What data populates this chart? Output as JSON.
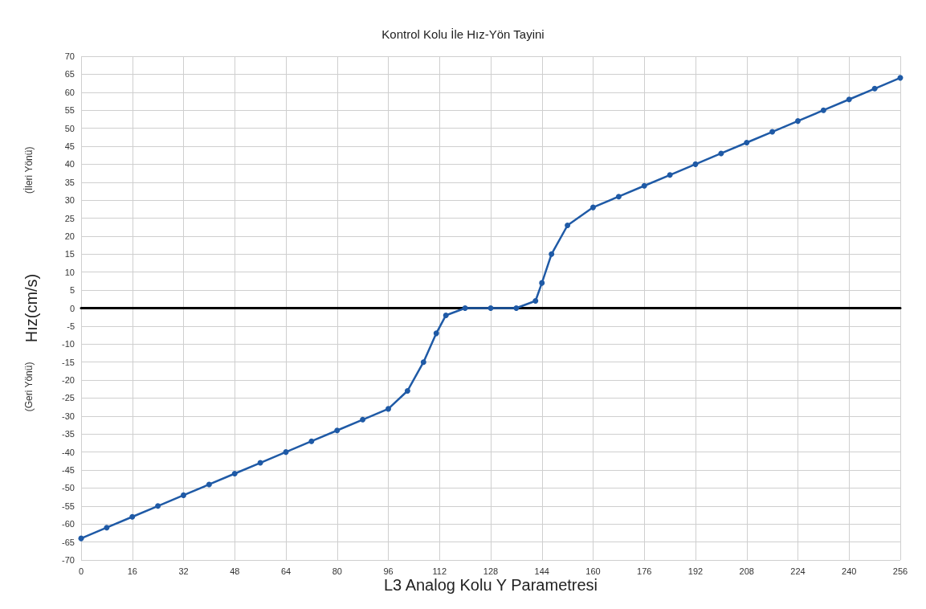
{
  "chart_data": {
    "type": "line",
    "title": "Kontrol Kolu İle Hız-Yön Tayini",
    "xlabel": "L3 Analog Kolu Y Parametresi",
    "ylabel": "Hız(cm/s)",
    "annotations": [
      "(İleri Yönü)",
      "(Geri Yönü)"
    ],
    "x": [
      0,
      8,
      16,
      24,
      32,
      40,
      48,
      56,
      64,
      72,
      80,
      88,
      96,
      102,
      107,
      111,
      114,
      120,
      128,
      136,
      142,
      144,
      147,
      152,
      160,
      168,
      176,
      184,
      192,
      200,
      208,
      216,
      224,
      232,
      240,
      248,
      256
    ],
    "series": [
      {
        "color": "#1f5aa6",
        "values": [
          -64,
          -61,
          -58,
          -55,
          -52,
          -49,
          -46,
          -43,
          -40,
          -37,
          -34,
          -31,
          -28,
          -23,
          -15,
          -7,
          -2,
          0,
          0,
          0,
          2,
          7,
          15,
          23,
          28,
          31,
          34,
          37,
          40,
          43,
          46,
          49,
          52,
          55,
          58,
          61,
          64
        ]
      }
    ],
    "xlim": [
      0,
      256
    ],
    "xticks": [
      0,
      16,
      32,
      48,
      64,
      80,
      96,
      112,
      128,
      144,
      160,
      176,
      192,
      208,
      224,
      240,
      256
    ],
    "ylim": [
      -70,
      70
    ],
    "yticks": [
      -70,
      -65,
      -60,
      -55,
      -50,
      -45,
      -40,
      -35,
      -30,
      -25,
      -20,
      -15,
      -10,
      -5,
      0,
      5,
      10,
      15,
      20,
      25,
      30,
      35,
      40,
      45,
      50,
      55,
      60,
      65,
      70
    ],
    "grid": true,
    "marker": "circle",
    "line_style": "solid"
  }
}
